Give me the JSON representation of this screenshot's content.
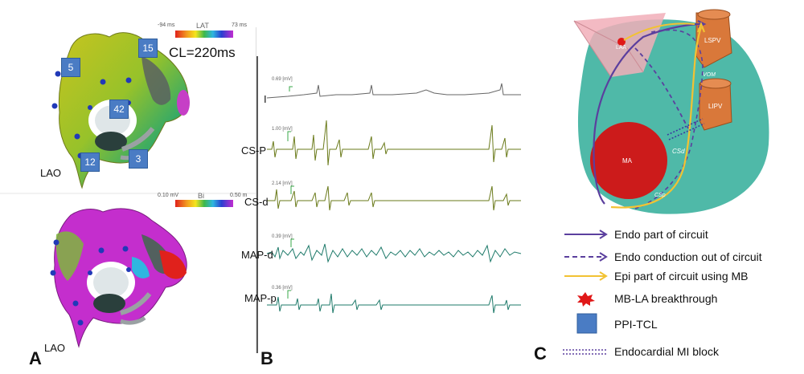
{
  "panel_a": {
    "letter": "A",
    "top_view": "LAO",
    "bottom_view": "LAO",
    "lat_scale": {
      "min": "-94 ms",
      "label": "LAT",
      "max": "73 ms"
    },
    "bi_scale": {
      "min": "0.10 mV",
      "label": "Bi",
      "max": "0.50 m"
    },
    "cycle_length": "CL=220ms",
    "ppi_values": [
      "5",
      "15",
      "42",
      "12",
      "3"
    ]
  },
  "panel_b": {
    "letter": "B",
    "channels": [
      {
        "name": "I",
        "scale": "0.69 [mV]"
      },
      {
        "name": "CS-P",
        "scale": "1.00 [mV]"
      },
      {
        "name": "CS-d",
        "scale": "2.14 [mV]"
      },
      {
        "name": "MAP-d",
        "scale": "0.39 [mV]"
      },
      {
        "name": "MAP-p",
        "scale": "0.36 [mV]"
      }
    ]
  },
  "panel_c": {
    "letter": "C",
    "structures": {
      "laa": "LAA",
      "lspv": "LSPV",
      "lipv": "LIPV",
      "vom": "VOM",
      "ma": "MA",
      "csd": "CSd",
      "csp": "CSp"
    },
    "legend": [
      {
        "label": "Endo  part of circuit",
        "symbol": "solid-purple-arrow"
      },
      {
        "label": "Endo  conduction out of circuit",
        "symbol": "dashed-purple-arrow"
      },
      {
        "label": "Epi  part of circuit using MB",
        "symbol": "yellow-arrow"
      },
      {
        "label": "MB-LA  breakthrough",
        "symbol": "red-star"
      },
      {
        "label": "PPI-TCL",
        "symbol": "blue-square"
      },
      {
        "label": "Endocardial MI block",
        "symbol": "dotted-double-line"
      }
    ],
    "colors": {
      "endo": "#5b3f9e",
      "epi": "#f2c233",
      "atrium": "#4fb9a8",
      "ma": "#cc1b1b",
      "vein": "#d9783a",
      "square": "#4a7cc4"
    }
  }
}
